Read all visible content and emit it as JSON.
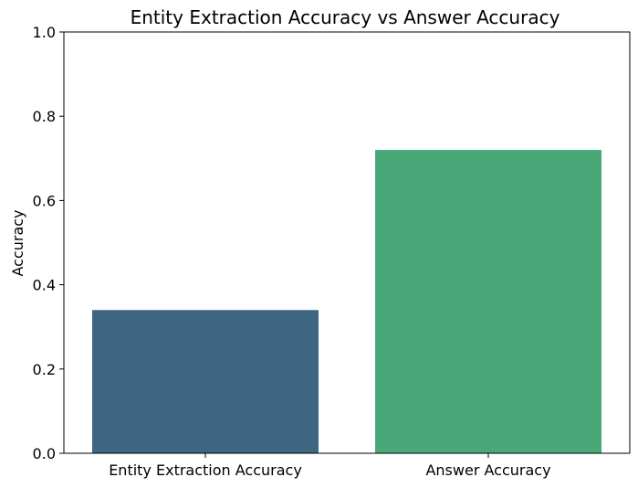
{
  "chart_data": {
    "type": "bar",
    "title": "Entity Extraction Accuracy vs Answer Accuracy",
    "xlabel": "",
    "ylabel": "Accuracy",
    "categories": [
      "Entity Extraction Accuracy",
      "Answer Accuracy"
    ],
    "values": [
      0.34,
      0.72
    ],
    "ylim": [
      0,
      1.0
    ],
    "yticks": [
      "0.0",
      "0.2",
      "0.4",
      "0.6",
      "0.8",
      "1.0"
    ],
    "bar_colors": [
      "#3e6680",
      "#48a878"
    ],
    "grid": false,
    "legend": "none"
  }
}
